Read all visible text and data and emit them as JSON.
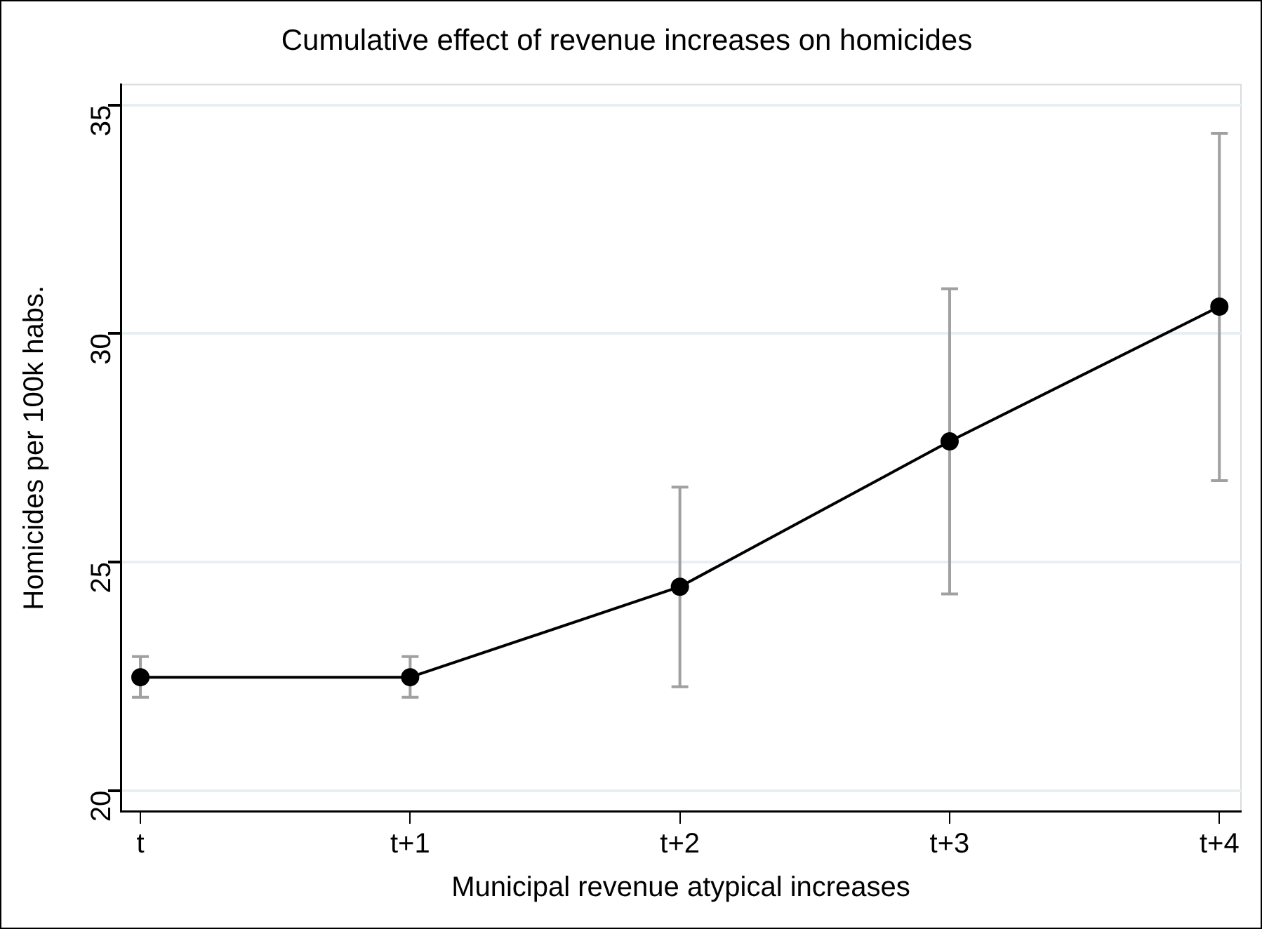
{
  "chart_data": {
    "type": "line",
    "title": "Cumulative effect of revenue increases on homicides",
    "xlabel": "Municipal revenue atypical increases",
    "ylabel": "Homicides per 100k habs.",
    "categories": [
      "t",
      "t+1",
      "t+2",
      "t+3",
      "t+4"
    ],
    "series": [
      {
        "color": "#000000",
        "values": [
          22.48,
          22.48,
          24.46,
          27.64,
          30.59
        ],
        "errors": [
          [
            22.04,
            22.93
          ],
          [
            22.04,
            22.93
          ],
          [
            22.27,
            26.64
          ],
          [
            24.3,
            30.98
          ],
          [
            26.78,
            34.38
          ]
        ]
      }
    ],
    "ylim": [
      19.55,
      35.45
    ],
    "yticks": [
      20,
      25,
      30,
      35
    ],
    "grid": "y",
    "marker": "circle",
    "line_style": "solid",
    "legend": false
  }
}
